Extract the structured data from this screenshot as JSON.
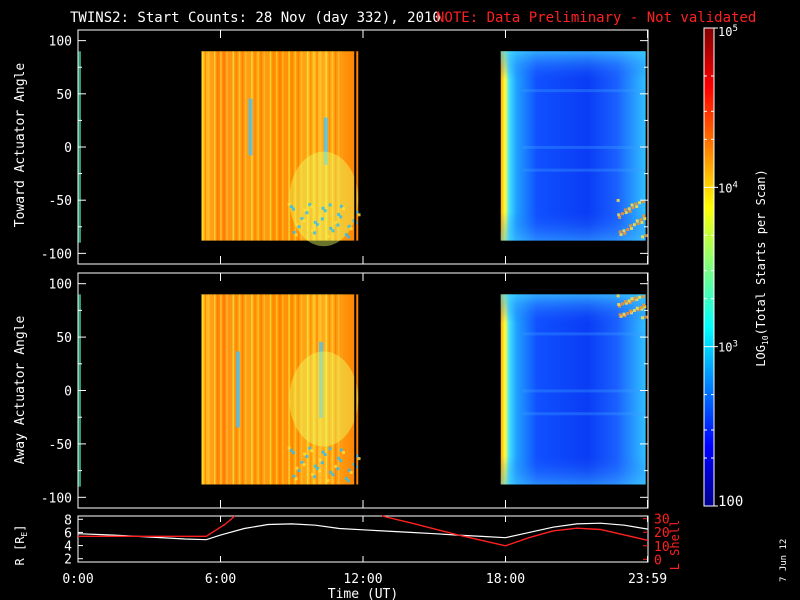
{
  "header": {
    "title": "TWINS2: Start Counts: 28 Nov (day 332), 2010",
    "note": "NOTE: Data Preliminary - Not validated"
  },
  "footer": {
    "date_stamp": "7 Jun 12"
  },
  "colors": {
    "background": "#000000",
    "axes": "#ffffff",
    "note": "#ff2020",
    "lshell": "#ff2020",
    "radius": "#ffffff"
  },
  "chart_data": [
    {
      "type": "heatmap",
      "name": "toward-panel",
      "ylabel": "Toward Actuator Angle",
      "ylim": [
        -110,
        110
      ],
      "yticks": [
        100,
        50,
        0,
        -50,
        -100
      ],
      "xlim_hours": [
        0,
        24
      ],
      "data_blocks": [
        {
          "start_hour": 5.2,
          "end_hour": 11.8,
          "angle_range": [
            -88,
            90
          ],
          "level": "high (~10^4 - 10^5)"
        },
        {
          "start_hour": 17.8,
          "end_hour": 23.9,
          "angle_range": [
            -88,
            90
          ],
          "level": "low (~10^2 - 10^3)"
        }
      ]
    },
    {
      "type": "heatmap",
      "name": "away-panel",
      "ylabel": "Away Actuator Angle",
      "ylim": [
        -110,
        110
      ],
      "yticks": [
        100,
        50,
        0,
        -50,
        -100
      ],
      "xlim_hours": [
        0,
        24
      ],
      "data_blocks": [
        {
          "start_hour": 5.2,
          "end_hour": 11.8,
          "angle_range": [
            -88,
            90
          ],
          "level": "high (~10^4 - 10^5)"
        },
        {
          "start_hour": 17.8,
          "end_hour": 23.9,
          "angle_range": [
            -88,
            90
          ],
          "level": "low (~10^2 - 10^3)"
        }
      ]
    },
    {
      "type": "line",
      "name": "orbit-panel",
      "ylabel_left": "R [R",
      "ylabel_left_sub": "E",
      "ylabel_left_end": "]",
      "ylabel_right": "L Shell",
      "left_yticks": [
        8,
        6,
        4,
        2
      ],
      "left_ylim": [
        1.5,
        8.5
      ],
      "right_yticks": [
        30,
        20,
        10,
        0
      ],
      "right_ylim": [
        -2,
        32
      ],
      "xlabel": "Time (UT)",
      "xticks": [
        {
          "hour": 0,
          "label": "0:00"
        },
        {
          "hour": 6,
          "label": "6:00"
        },
        {
          "hour": 12,
          "label": "12:00"
        },
        {
          "hour": 18,
          "label": "18:00"
        },
        {
          "hour": 23.98,
          "label": "23:59"
        }
      ],
      "series": [
        {
          "name": "R",
          "axis": "left",
          "x": [
            0,
            1.5,
            3,
            4.5,
            5.4,
            6,
            7,
            8,
            9,
            10,
            11,
            12,
            13,
            14,
            15,
            16,
            17,
            18,
            19,
            20,
            21,
            22,
            23,
            24
          ],
          "y": [
            5.8,
            5.6,
            5.3,
            5.0,
            4.9,
            5.6,
            6.6,
            7.2,
            7.3,
            7.1,
            6.6,
            6.4,
            6.2,
            6.0,
            5.8,
            5.6,
            5.4,
            5.2,
            6.0,
            6.8,
            7.3,
            7.4,
            7.1,
            6.5
          ]
        },
        {
          "name": "L Shell",
          "axis": "right",
          "segments": [
            {
              "x": [
                0,
                2,
                4,
                5.4
              ],
              "y": [
                17,
                17,
                17,
                17
              ]
            },
            {
              "x": [
                5.4,
                6.2,
                6.6
              ],
              "y": [
                17,
                26,
                32
              ]
            },
            {
              "x": [
                12.8,
                14,
                16,
                18
              ],
              "y": [
                32,
                27,
                18,
                10
              ]
            },
            {
              "x": [
                18,
                19,
                20,
                21,
                22,
                23,
                24
              ],
              "y": [
                10,
                16,
                21,
                23,
                22,
                18,
                14
              ]
            }
          ]
        }
      ]
    },
    {
      "type": "heatmap",
      "name": "colorbar",
      "label_base": "LOG",
      "label_sub": "10",
      "label_rest": "(Total Starts per Scan)",
      "log_range": [
        2,
        5
      ],
      "ticks": [
        {
          "value": 5,
          "label_base": "10",
          "label_exp": "5"
        },
        {
          "value": 4,
          "label_base": "10",
          "label_exp": "4"
        },
        {
          "value": 3,
          "label_base": "10",
          "label_exp": "3"
        },
        {
          "value": 2,
          "label_plain": "100"
        }
      ]
    }
  ]
}
